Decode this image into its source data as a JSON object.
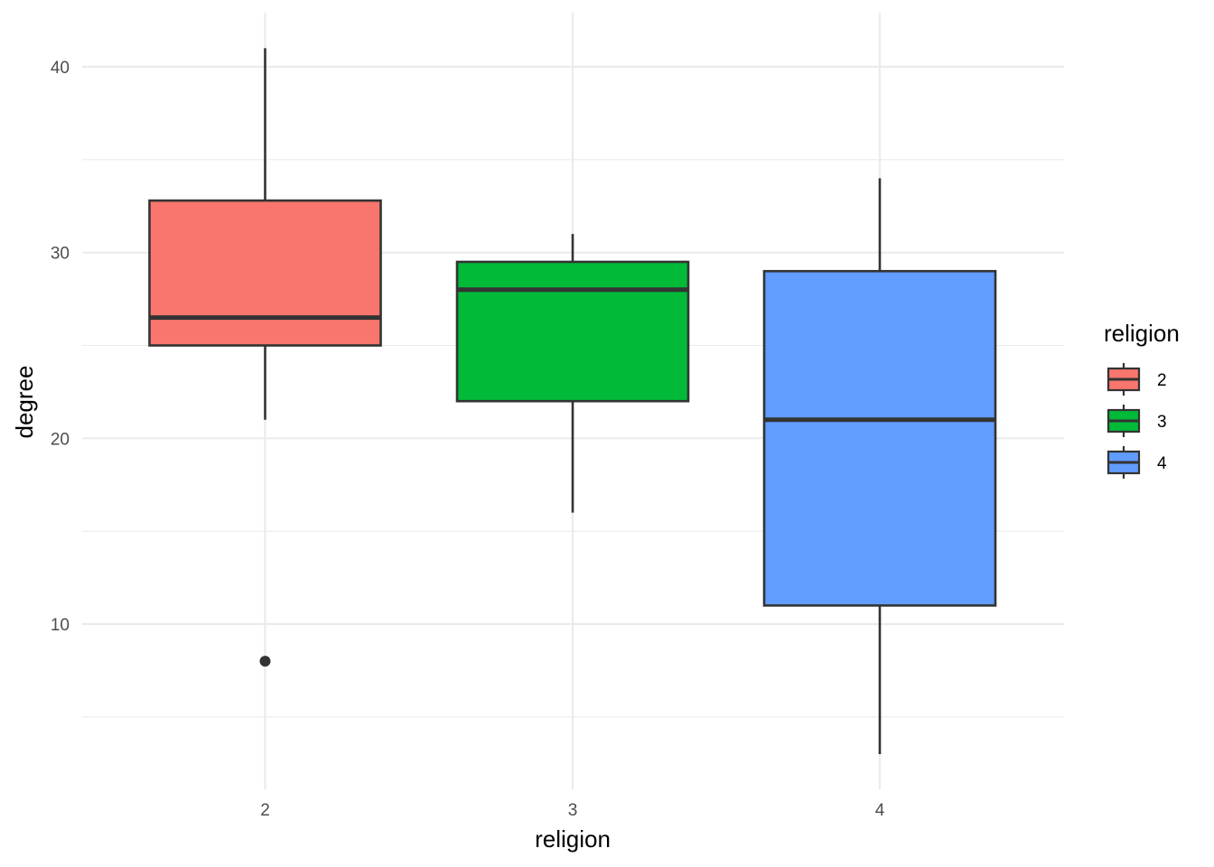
{
  "chart_data": {
    "type": "boxplot",
    "title": "",
    "xlabel": "religion",
    "ylabel": "degree",
    "categories": [
      "2",
      "3",
      "4"
    ],
    "ylim": [
      2.5,
      43
    ],
    "y_major_ticks": [
      10,
      20,
      30,
      40
    ],
    "y_minor_ticks": [
      5,
      15,
      25,
      35
    ],
    "grid": true,
    "legend": {
      "title": "religion",
      "position": "right",
      "entries": [
        "2",
        "3",
        "4"
      ]
    },
    "series": [
      {
        "category": "2",
        "color": "#F8766D",
        "min": 21,
        "q1": 25,
        "median": 26.5,
        "q3": 32.8,
        "max": 41,
        "outliers": [
          8
        ]
      },
      {
        "category": "3",
        "color": "#00BA38",
        "min": 16,
        "q1": 22,
        "median": 28,
        "q3": 29.5,
        "max": 31,
        "outliers": []
      },
      {
        "category": "4",
        "color": "#619CFF",
        "min": 3,
        "q1": 11,
        "median": 21,
        "q3": 29,
        "max": 34,
        "outliers": []
      }
    ],
    "colors": {
      "box_outline": "#333333",
      "grid": "#EBEBEB",
      "tick_text": "#4D4D4D",
      "background": "#FFFFFF"
    }
  }
}
